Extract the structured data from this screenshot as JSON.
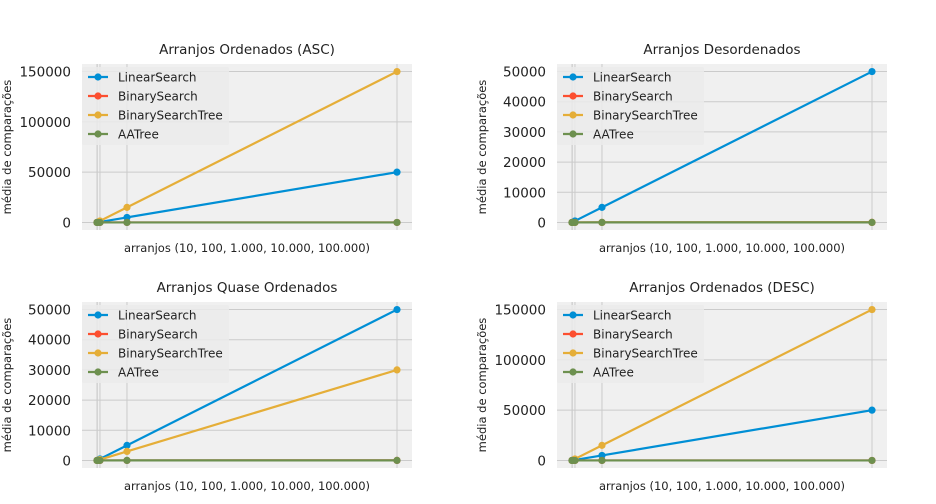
{
  "colors": {
    "page_bg": "#ffffff",
    "axes_bg": "#f0f0f0",
    "grid": "#cbcbcb",
    "text": "#222222",
    "legend_bg": "#ebebeb"
  },
  "chart_data": [
    {
      "type": "line",
      "title": "Arranjos Ordenados (ASC)",
      "xlabel": "arranjos (10, 100, 1.000, 10.000, 100.000)",
      "ylabel": "média de comparações",
      "x": [
        10,
        100,
        1000,
        10000,
        100000
      ],
      "xlim": [
        -4990,
        105000
      ],
      "ylim": [
        -7500,
        157500
      ],
      "yticks": [
        0,
        50000,
        100000,
        150000
      ],
      "legend_position": "top-left",
      "grid": true,
      "series": [
        {
          "name": "LinearSearch",
          "color": "#008fd5",
          "values": [
            5,
            50,
            500,
            5000,
            50000
          ]
        },
        {
          "name": "BinarySearch",
          "color": "#fc4f30",
          "values": [
            3,
            6,
            9,
            13,
            16
          ]
        },
        {
          "name": "BinarySearchTree",
          "color": "#e5ae38",
          "values": [
            15,
            150,
            1500,
            15000,
            150000
          ]
        },
        {
          "name": "AATree",
          "color": "#6d904f",
          "values": [
            4,
            7,
            10,
            14,
            17
          ]
        }
      ]
    },
    {
      "type": "line",
      "title": "Arranjos Desordenados",
      "xlabel": "arranjos (10, 100, 1.000, 10.000, 100.000)",
      "ylabel": "média de comparações",
      "x": [
        10,
        100,
        1000,
        10000,
        100000
      ],
      "xlim": [
        -4990,
        105000
      ],
      "ylim": [
        -2500,
        52500
      ],
      "yticks": [
        0,
        10000,
        20000,
        30000,
        40000,
        50000
      ],
      "legend_position": "top-left",
      "grid": true,
      "series": [
        {
          "name": "LinearSearch",
          "color": "#008fd5",
          "values": [
            5,
            50,
            500,
            5000,
            50000
          ]
        },
        {
          "name": "BinarySearch",
          "color": "#fc4f30",
          "values": [
            3,
            6,
            9,
            13,
            16
          ]
        },
        {
          "name": "BinarySearchTree",
          "color": "#e5ae38",
          "values": [
            5,
            8,
            12,
            17,
            21
          ]
        },
        {
          "name": "AATree",
          "color": "#6d904f",
          "values": [
            4,
            7,
            10,
            14,
            17
          ]
        }
      ]
    },
    {
      "type": "line",
      "title": "Arranjos Quase Ordenados",
      "xlabel": "arranjos (10, 100, 1.000, 10.000, 100.000)",
      "ylabel": "média de comparações",
      "x": [
        10,
        100,
        1000,
        10000,
        100000
      ],
      "xlim": [
        -4990,
        105000
      ],
      "ylim": [
        -2500,
        52500
      ],
      "yticks": [
        0,
        10000,
        20000,
        30000,
        40000,
        50000
      ],
      "legend_position": "top-left",
      "grid": true,
      "series": [
        {
          "name": "LinearSearch",
          "color": "#008fd5",
          "values": [
            5,
            50,
            500,
            5000,
            50000
          ]
        },
        {
          "name": "BinarySearch",
          "color": "#fc4f30",
          "values": [
            3,
            6,
            9,
            13,
            16
          ]
        },
        {
          "name": "BinarySearchTree",
          "color": "#e5ae38",
          "values": [
            3,
            30,
            300,
            3000,
            30000
          ]
        },
        {
          "name": "AATree",
          "color": "#6d904f",
          "values": [
            4,
            7,
            10,
            14,
            17
          ]
        }
      ]
    },
    {
      "type": "line",
      "title": "Arranjos Ordenados (DESC)",
      "xlabel": "arranjos (10, 100, 1.000, 10.000, 100.000)",
      "ylabel": "média de comparações",
      "x": [
        10,
        100,
        1000,
        10000,
        100000
      ],
      "xlim": [
        -4990,
        105000
      ],
      "ylim": [
        -7500,
        157500
      ],
      "yticks": [
        0,
        50000,
        100000,
        150000
      ],
      "legend_position": "top-left",
      "grid": true,
      "series": [
        {
          "name": "LinearSearch",
          "color": "#008fd5",
          "values": [
            5,
            50,
            500,
            5000,
            50000
          ]
        },
        {
          "name": "BinarySearch",
          "color": "#fc4f30",
          "values": [
            3,
            6,
            9,
            13,
            16
          ]
        },
        {
          "name": "BinarySearchTree",
          "color": "#e5ae38",
          "values": [
            15,
            150,
            1500,
            15000,
            150000
          ]
        },
        {
          "name": "AATree",
          "color": "#6d904f",
          "values": [
            4,
            7,
            10,
            14,
            17
          ]
        }
      ]
    }
  ]
}
